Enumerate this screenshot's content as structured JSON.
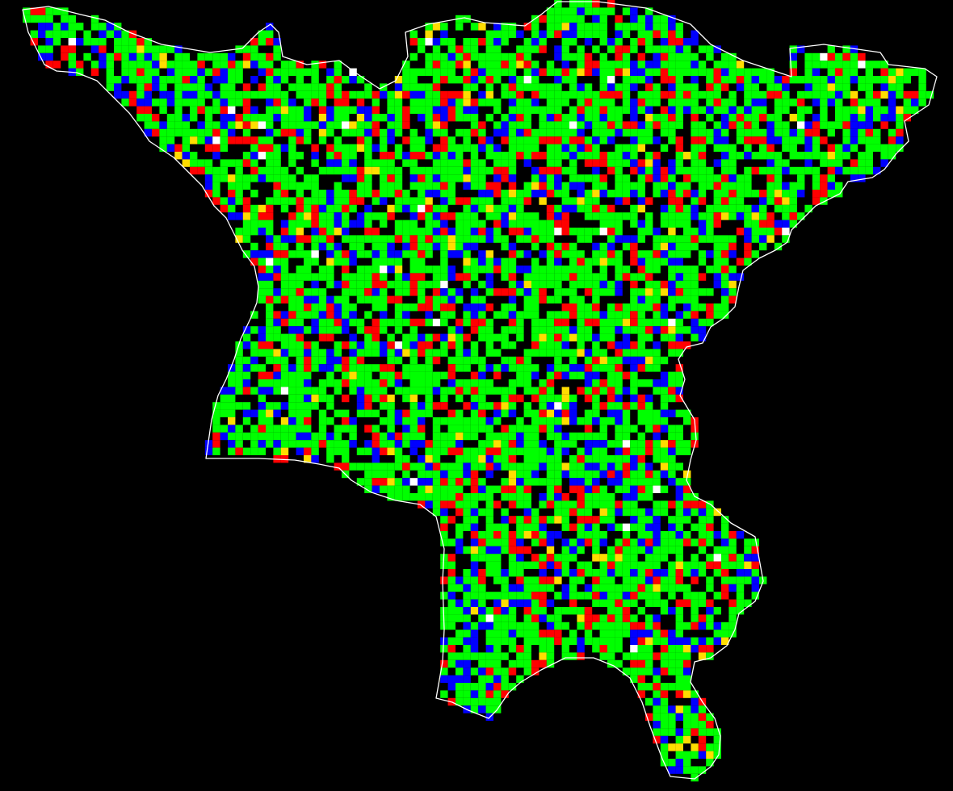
{
  "map": {
    "background": "#000000",
    "outline_color": "#ffffff",
    "cell_colors": {
      "green": "#00ff00",
      "blue": "#0000ff",
      "red": "#ff0000",
      "yellow": "#ffdd00",
      "white": "#ffffff"
    },
    "legend": []
  }
}
